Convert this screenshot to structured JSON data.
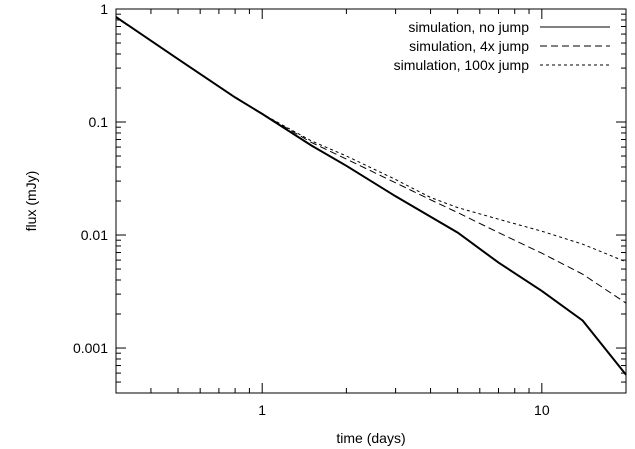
{
  "chart_data": {
    "type": "line",
    "xlabel": "time (days)",
    "ylabel": "flux (mJy)",
    "x_scale": "log",
    "y_scale": "log",
    "xlim": [
      0.3,
      20
    ],
    "ylim": [
      0.0004,
      1
    ],
    "x_ticks": [
      {
        "value": 1,
        "label": "1"
      },
      {
        "value": 10,
        "label": "10"
      }
    ],
    "y_ticks": [
      {
        "value": 1,
        "label": "1"
      },
      {
        "value": 0.1,
        "label": "0.1"
      },
      {
        "value": 0.01,
        "label": "0.01"
      },
      {
        "value": 0.001,
        "label": "0.001"
      }
    ],
    "grid": false,
    "legend_position": "top-right",
    "series": [
      {
        "name": "simulation, no jump",
        "style": "solid",
        "x": [
          0.3,
          0.5,
          0.8,
          1,
          1.5,
          2,
          3,
          4,
          5,
          7,
          10,
          14,
          20
        ],
        "y": [
          0.85,
          0.36,
          0.165,
          0.118,
          0.062,
          0.041,
          0.022,
          0.0145,
          0.0105,
          0.0057,
          0.0032,
          0.00175,
          0.00058
        ]
      },
      {
        "name": "simulation, 4x jump",
        "style": "dashed",
        "x": [
          0.3,
          0.5,
          0.8,
          1,
          1.5,
          2,
          3,
          4,
          5,
          7,
          10,
          14,
          20
        ],
        "y": [
          0.85,
          0.36,
          0.165,
          0.118,
          0.066,
          0.047,
          0.029,
          0.0205,
          0.0158,
          0.0105,
          0.0069,
          0.0045,
          0.0025
        ]
      },
      {
        "name": "simulation, 100x jump",
        "style": "dotted",
        "x": [
          0.3,
          0.5,
          0.8,
          1,
          1.5,
          2,
          3,
          4,
          5,
          7,
          10,
          14,
          20
        ],
        "y": [
          0.85,
          0.36,
          0.165,
          0.118,
          0.068,
          0.05,
          0.031,
          0.0215,
          0.0175,
          0.0138,
          0.0108,
          0.0083,
          0.0058
        ]
      }
    ]
  }
}
